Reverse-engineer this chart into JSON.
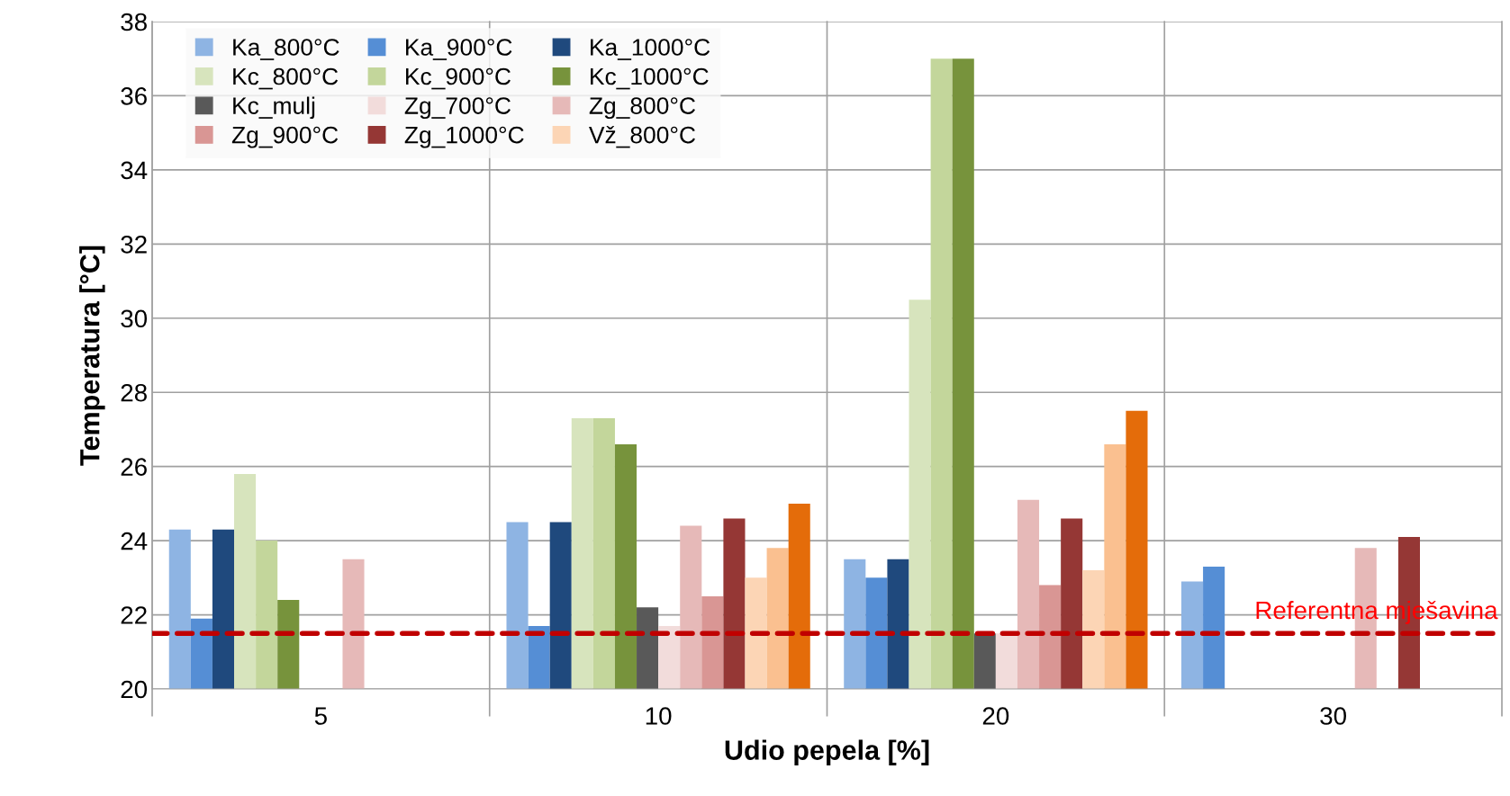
{
  "chart_data": {
    "type": "bar",
    "xlabel": "Udio pepela [%]",
    "ylabel": "Temperatura [°C]",
    "categories": [
      "5",
      "10",
      "20",
      "30"
    ],
    "series": [
      {
        "name": "Ka_800°C",
        "color": "#8eb4e3",
        "values": [
          24.3,
          24.5,
          23.5,
          22.9
        ]
      },
      {
        "name": "Ka_900°C",
        "color": "#558ed5",
        "values": [
          21.9,
          21.7,
          23.0,
          23.3
        ]
      },
      {
        "name": "Ka_1000°C",
        "color": "#1f497d",
        "values": [
          24.3,
          24.5,
          23.5,
          null
        ]
      },
      {
        "name": "Kc_800°C",
        "color": "#d7e4bd",
        "values": [
          25.8,
          27.3,
          30.5,
          null
        ]
      },
      {
        "name": "Kc_900°C",
        "color": "#c3d69b",
        "values": [
          24.0,
          27.3,
          37.0,
          null
        ]
      },
      {
        "name": "Kc_1000°C",
        "color": "#77933c",
        "values": [
          22.4,
          26.6,
          37.0,
          null
        ]
      },
      {
        "name": "Kc_mulj",
        "color": "#595959",
        "values": [
          null,
          22.2,
          21.5,
          null
        ]
      },
      {
        "name": "Zg_700°C",
        "color": "#f2dcdb",
        "values": [
          null,
          21.7,
          21.5,
          null
        ]
      },
      {
        "name": "Zg_800°C",
        "color": "#e6b9b8",
        "values": [
          23.5,
          24.4,
          25.1,
          23.8
        ]
      },
      {
        "name": "Zg_900°C",
        "color": "#d99694",
        "values": [
          null,
          22.5,
          22.8,
          null
        ]
      },
      {
        "name": "Zg_1000°C",
        "color": "#953735",
        "values": [
          null,
          24.6,
          24.6,
          24.1
        ]
      },
      {
        "name": "Vž_800°C",
        "color": "#fcd5b5",
        "values": [
          null,
          23.0,
          23.2,
          null
        ]
      },
      {
        "color": "#fac090",
        "values": [
          null,
          23.8,
          26.6,
          null
        ]
      },
      {
        "color": "#e46c0a",
        "values": [
          null,
          25.0,
          27.5,
          null
        ]
      }
    ],
    "ylim": [
      20,
      38
    ],
    "yticks": [
      20,
      22,
      24,
      26,
      28,
      30,
      32,
      34,
      36,
      38
    ],
    "ref_lines": [
      {
        "axis": "y",
        "value": 21.5,
        "label": "Referentna mješavina",
        "color": "#c00000",
        "line_style": "dashed"
      }
    ],
    "grid": true,
    "legend": "top left"
  }
}
